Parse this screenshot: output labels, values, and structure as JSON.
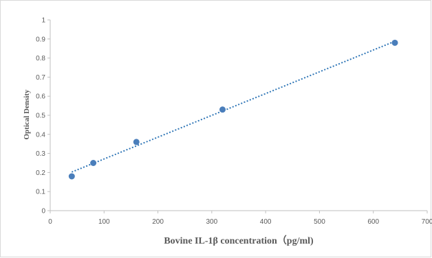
{
  "chart_data": {
    "type": "scatter",
    "title": "",
    "xlabel": "Bovine IL-1β concentration（pg/ml)",
    "ylabel": "Optical Density",
    "xlim": [
      0,
      700
    ],
    "ylim": [
      0,
      1
    ],
    "x_ticks": [
      "0",
      "100",
      "200",
      "300",
      "400",
      "500",
      "600",
      "700"
    ],
    "y_ticks": [
      "0",
      "0.1",
      "0.2",
      "0.3",
      "0.4",
      "0.5",
      "0.6",
      "0.7",
      "0.8",
      "0.9",
      "1"
    ],
    "grid": false,
    "legend": "none",
    "points": [
      {
        "x": 40,
        "y": 0.18
      },
      {
        "x": 80,
        "y": 0.25
      },
      {
        "x": 160,
        "y": 0.36
      },
      {
        "x": 320,
        "y": 0.53
      },
      {
        "x": 640,
        "y": 0.88
      }
    ],
    "trendline": {
      "type": "linear",
      "style": "dotted",
      "x_start": 40,
      "x_end": 640
    },
    "colors": {
      "marker": "#4a7ebb",
      "trendline": "#2e75b6",
      "axis": "#bfbfbf",
      "text": "#595959"
    }
  }
}
